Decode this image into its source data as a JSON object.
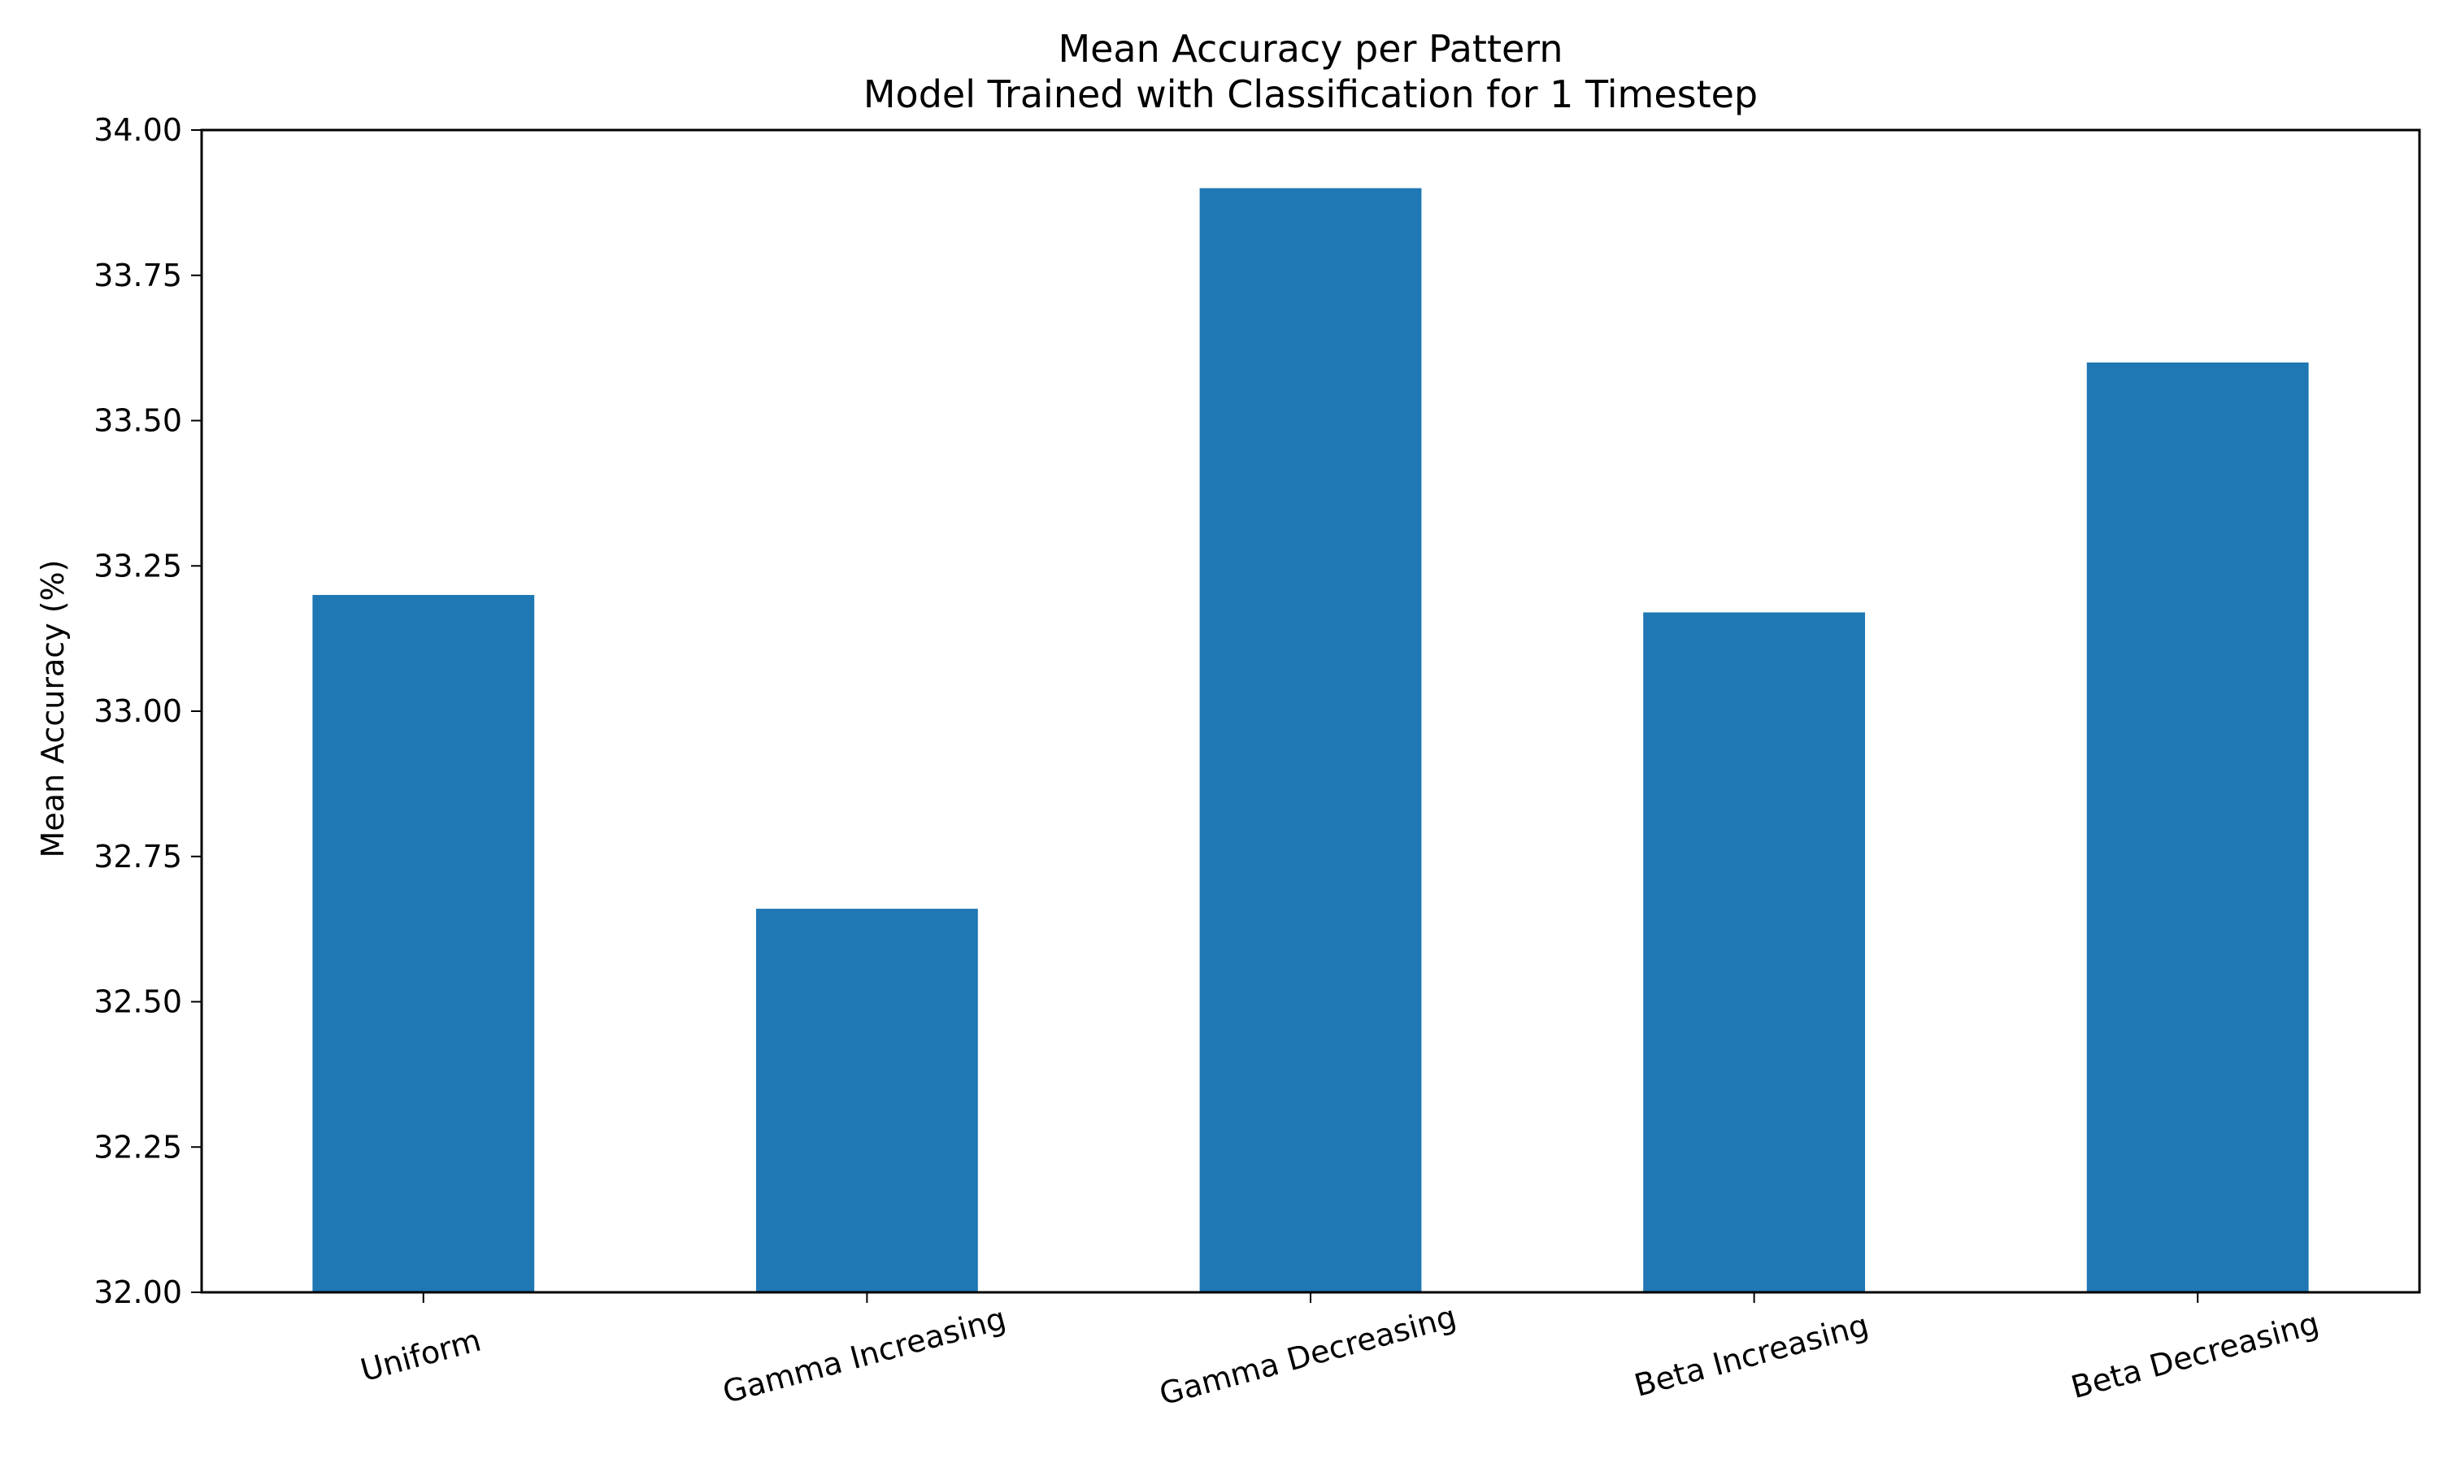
{
  "chart_data": {
    "type": "bar",
    "title": "Mean Accuracy per Pattern",
    "subtitle": "Model Trained with Classification for 1 Timestep",
    "xlabel": "",
    "ylabel": "Mean Accuracy (%)",
    "categories": [
      "Uniform",
      "Gamma Increasing",
      "Gamma Decreasing",
      "Beta Increasing",
      "Beta Decreasing"
    ],
    "values": [
      33.2,
      32.66,
      33.9,
      33.17,
      33.6
    ],
    "ylim": [
      32.0,
      34.0
    ],
    "yticks": [
      "32.00",
      "32.25",
      "32.50",
      "32.75",
      "33.00",
      "33.25",
      "33.50",
      "33.75",
      "34.00"
    ],
    "bar_color": "#1f77b4",
    "grid": false,
    "legend": "none"
  }
}
